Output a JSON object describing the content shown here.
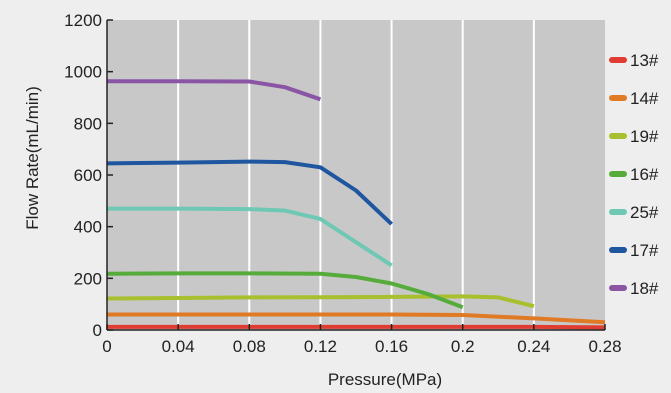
{
  "chart_data": {
    "type": "line",
    "title": "",
    "xlabel": "Pressure(MPa)",
    "ylabel": "Flow Rate(mL/min)",
    "xlim": [
      0,
      0.28
    ],
    "ylim": [
      0,
      1200
    ],
    "xticks": [
      0,
      0.04,
      0.08,
      0.12,
      0.16,
      0.2,
      0.24,
      0.28
    ],
    "xtick_labels": [
      "0",
      "0.04",
      "0.08",
      "0.12",
      "0.16",
      "0.2",
      "0.24",
      "0.28"
    ],
    "yticks": [
      0,
      200,
      400,
      600,
      800,
      1000,
      1200
    ],
    "ytick_labels": [
      "0",
      "200",
      "400",
      "600",
      "800",
      "1000",
      "1200"
    ],
    "grid": "vertical",
    "legend_position": "right",
    "plot_background": "#c8c8c8",
    "series": [
      {
        "name": "13#",
        "color": "#e03c31",
        "points": [
          [
            0,
            12
          ],
          [
            0.04,
            12
          ],
          [
            0.08,
            12
          ],
          [
            0.12,
            12
          ],
          [
            0.16,
            12
          ],
          [
            0.2,
            12
          ],
          [
            0.24,
            12
          ],
          [
            0.28,
            10
          ]
        ]
      },
      {
        "name": "14#",
        "color": "#e07a24",
        "points": [
          [
            0,
            60
          ],
          [
            0.04,
            60
          ],
          [
            0.08,
            60
          ],
          [
            0.12,
            60
          ],
          [
            0.16,
            60
          ],
          [
            0.2,
            58
          ],
          [
            0.24,
            45
          ],
          [
            0.28,
            30
          ]
        ]
      },
      {
        "name": "19#",
        "color": "#a8bf2e",
        "points": [
          [
            0,
            122
          ],
          [
            0.04,
            124
          ],
          [
            0.08,
            126
          ],
          [
            0.12,
            127
          ],
          [
            0.16,
            128
          ],
          [
            0.2,
            130
          ],
          [
            0.22,
            126
          ],
          [
            0.24,
            92
          ]
        ]
      },
      {
        "name": "16#",
        "color": "#55ac3a",
        "points": [
          [
            0,
            218
          ],
          [
            0.04,
            219
          ],
          [
            0.08,
            219
          ],
          [
            0.12,
            218
          ],
          [
            0.14,
            205
          ],
          [
            0.16,
            180
          ],
          [
            0.18,
            140
          ],
          [
            0.2,
            88
          ]
        ]
      },
      {
        "name": "25#",
        "color": "#6fc8b3",
        "points": [
          [
            0,
            470
          ],
          [
            0.04,
            470
          ],
          [
            0.08,
            468
          ],
          [
            0.1,
            462
          ],
          [
            0.12,
            430
          ],
          [
            0.14,
            340
          ],
          [
            0.16,
            250
          ]
        ]
      },
      {
        "name": "17#",
        "color": "#1f56a0",
        "points": [
          [
            0,
            645
          ],
          [
            0.04,
            648
          ],
          [
            0.08,
            652
          ],
          [
            0.1,
            650
          ],
          [
            0.12,
            630
          ],
          [
            0.14,
            540
          ],
          [
            0.16,
            410
          ]
        ]
      },
      {
        "name": "18#",
        "color": "#8a55a5",
        "points": [
          [
            0,
            963
          ],
          [
            0.04,
            963
          ],
          [
            0.08,
            962
          ],
          [
            0.1,
            940
          ],
          [
            0.12,
            893
          ]
        ]
      }
    ]
  }
}
